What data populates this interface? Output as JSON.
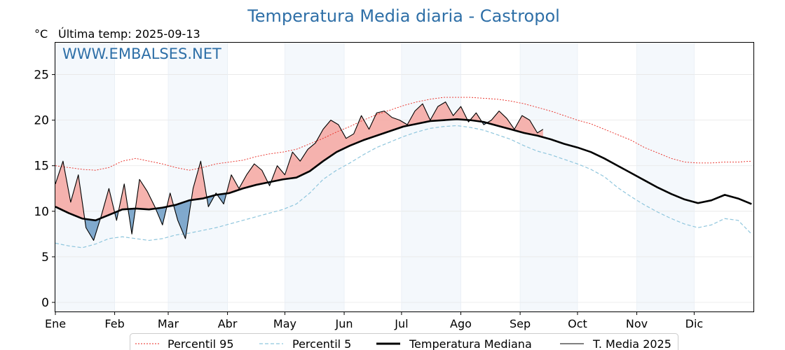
{
  "chart_data": {
    "type": "line",
    "title": "Temperatura Media diaria - Castropol",
    "unit_label": "°C",
    "last_temp_label": "Última temp: 2025-09-13",
    "watermark": "WWW.EMBALSES.NET",
    "x_ticks": [
      "Ene",
      "Feb",
      "Mar",
      "Abr",
      "May",
      "Jun",
      "Jul",
      "Ago",
      "Sep",
      "Oct",
      "Nov",
      "Dic"
    ],
    "ylim": [
      -1,
      28.5
    ],
    "y_ticks": [
      0,
      5,
      10,
      15,
      20,
      25
    ],
    "grid": true,
    "legend_position": "bottom",
    "colors": {
      "p95": "#e8271f",
      "p5": "#8fc6dd",
      "median": "#000000",
      "current": "#000000",
      "above_fill": "#f4a6a0",
      "below_fill": "#6b9bc4",
      "shade": "#f4f8fc"
    },
    "series": [
      {
        "name": "Percentil 95",
        "days": [
          1,
          8,
          15,
          22,
          29,
          36,
          43,
          50,
          57,
          64,
          71,
          78,
          85,
          92,
          99,
          106,
          113,
          120,
          127,
          134,
          141,
          148,
          155,
          162,
          169,
          176,
          183,
          190,
          197,
          204,
          211,
          218,
          225,
          232,
          239,
          246,
          253,
          260,
          267,
          274,
          281,
          288,
          295,
          302,
          309,
          316,
          323,
          330,
          337,
          344,
          351,
          358,
          365
        ],
        "values": [
          15,
          14.8,
          14.6,
          14.5,
          14.8,
          15.5,
          15.8,
          15.5,
          15.2,
          14.8,
          14.5,
          14.8,
          15.2,
          15.4,
          15.6,
          16,
          16.3,
          16.5,
          16.8,
          17.4,
          18,
          18.7,
          19.3,
          20,
          20.6,
          21.1,
          21.6,
          22.0,
          22.3,
          22.5,
          22.5,
          22.5,
          22.4,
          22.3,
          22.1,
          21.8,
          21.4,
          21.0,
          20.5,
          20.0,
          19.6,
          19.0,
          18.4,
          17.8,
          17.0,
          16.4,
          15.8,
          15.4,
          15.3,
          15.3,
          15.4,
          15.4,
          15.5
        ]
      },
      {
        "name": "Percentil 5",
        "days": [
          1,
          8,
          15,
          22,
          29,
          36,
          43,
          50,
          57,
          64,
          71,
          78,
          85,
          92,
          99,
          106,
          113,
          120,
          127,
          134,
          141,
          148,
          155,
          162,
          169,
          176,
          183,
          190,
          197,
          204,
          211,
          218,
          225,
          232,
          239,
          246,
          253,
          260,
          267,
          274,
          281,
          288,
          295,
          302,
          309,
          316,
          323,
          330,
          337,
          344,
          351,
          358,
          365
        ],
        "values": [
          6.5,
          6.2,
          6.0,
          6.4,
          7.0,
          7.2,
          7.0,
          6.8,
          7.0,
          7.4,
          7.6,
          7.9,
          8.2,
          8.6,
          9.0,
          9.4,
          9.8,
          10.2,
          10.8,
          12.0,
          13.5,
          14.5,
          15.3,
          16.2,
          17.0,
          17.6,
          18.2,
          18.7,
          19.1,
          19.3,
          19.4,
          19.2,
          18.9,
          18.4,
          17.9,
          17.2,
          16.6,
          16.2,
          15.7,
          15.2,
          14.6,
          13.8,
          12.6,
          11.6,
          10.7,
          9.9,
          9.2,
          8.6,
          8.2,
          8.5,
          9.2,
          9.0,
          7.5
        ]
      },
      {
        "name": "Temperatura Mediana",
        "days": [
          1,
          8,
          15,
          22,
          29,
          36,
          43,
          50,
          57,
          64,
          71,
          78,
          85,
          92,
          99,
          106,
          113,
          120,
          127,
          134,
          141,
          148,
          155,
          162,
          169,
          176,
          183,
          190,
          197,
          204,
          211,
          218,
          225,
          232,
          239,
          246,
          253,
          260,
          267,
          274,
          281,
          288,
          295,
          302,
          309,
          316,
          323,
          330,
          337,
          344,
          351,
          358,
          365
        ],
        "values": [
          10.5,
          9.8,
          9.2,
          9.0,
          9.6,
          10.2,
          10.3,
          10.2,
          10.4,
          10.7,
          11.2,
          11.4,
          11.8,
          12.0,
          12.5,
          12.9,
          13.2,
          13.5,
          13.7,
          14.4,
          15.5,
          16.5,
          17.2,
          17.8,
          18.3,
          18.8,
          19.3,
          19.6,
          19.9,
          20.0,
          20.1,
          20.0,
          19.8,
          19.4,
          19.0,
          18.6,
          18.3,
          17.9,
          17.4,
          17.0,
          16.5,
          15.8,
          15.0,
          14.2,
          13.4,
          12.6,
          11.9,
          11.3,
          10.9,
          11.2,
          11.8,
          11.4,
          10.8
        ]
      },
      {
        "name": "T. Media 2025",
        "days": [
          1,
          5,
          9,
          13,
          17,
          21,
          25,
          29,
          33,
          37,
          41,
          45,
          49,
          53,
          57,
          61,
          65,
          69,
          73,
          77,
          81,
          85,
          89,
          93,
          97,
          101,
          105,
          109,
          113,
          117,
          121,
          125,
          129,
          133,
          137,
          141,
          145,
          149,
          153,
          157,
          161,
          165,
          169,
          173,
          177,
          181,
          185,
          189,
          193,
          197,
          201,
          205,
          209,
          213,
          217,
          221,
          225,
          229,
          233,
          237,
          241,
          245,
          249,
          253,
          256
        ],
        "values": [
          13,
          15.5,
          11,
          14,
          8.2,
          6.8,
          9.5,
          12.5,
          9.0,
          13.0,
          7.5,
          13.5,
          12.2,
          10.5,
          8.5,
          12.0,
          9.0,
          7.0,
          12.5,
          15.5,
          10.5,
          12.0,
          10.8,
          14.0,
          12.5,
          14.0,
          15.2,
          14.5,
          12.8,
          15.0,
          14.0,
          16.5,
          15.5,
          16.8,
          17.5,
          19.0,
          20.0,
          19.5,
          18.0,
          18.5,
          20.5,
          19.0,
          20.8,
          21.0,
          20.3,
          20.0,
          19.5,
          21.0,
          21.8,
          20.0,
          21.5,
          22.0,
          20.5,
          21.5,
          19.8,
          20.8,
          19.5,
          20.0,
          21.0,
          20.2,
          19.0,
          20.5,
          20.0,
          18.6,
          19.0
        ]
      }
    ]
  }
}
